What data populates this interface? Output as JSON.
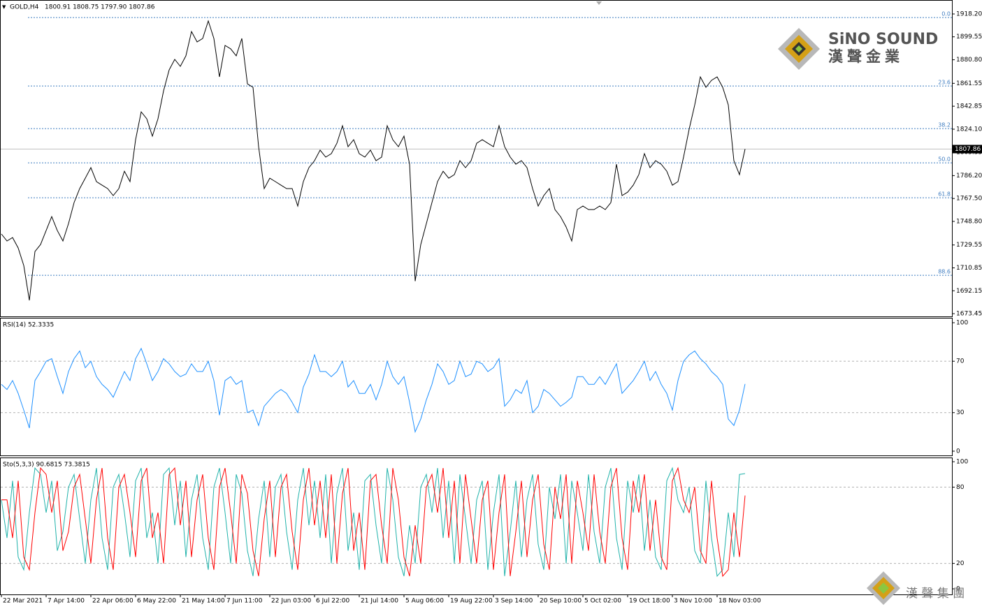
{
  "chart_data": [
    {
      "type": "line",
      "title": "GOLD,H4",
      "subtitle": "1800.91 1808.75 1797.90 1807.86",
      "ylim": [
        1671.2,
        1929.6
      ],
      "yticks": [
        {
          "value": 1918.2,
          "label": "1918.20"
        },
        1899.55,
        {
          "value": 1880.8,
          "label": "1880.80"
        },
        1861.55,
        1842.85,
        {
          "value": 1824.1,
          "label": "1824.10"
        },
        1805.35,
        {
          "value": 1786.2,
          "label": "1786.20"
        },
        {
          "value": 1767.5,
          "label": "1767.50"
        },
        {
          "value": 1748.8,
          "label": "1748.80"
        },
        1729.55,
        1710.85,
        1692.15,
        1673.45
      ],
      "last_price": 1807.86,
      "fib_levels": {
        "labels": [
          "0.0",
          "23.6",
          "38.2",
          "50.0",
          "61.8",
          "88.6"
        ],
        "prices": [
          1915.3,
          1859.4,
          1824.6,
          1796.6,
          1768.1,
          1704.8
        ]
      },
      "series": [
        {
          "color": "#000000",
          "values": [
            1738.5,
            1732.8,
            1735.6,
            1727.1,
            1712.8,
            1684.3,
            1724.2,
            1729.9,
            1741.3,
            1752.7,
            1741.3,
            1732.8,
            1747.0,
            1764.2,
            1775.6,
            1784.1,
            1792.7,
            1781.3,
            1778.4,
            1775.6,
            1769.9,
            1775.6,
            1789.8,
            1781.3,
            1815.5,
            1838.3,
            1832.6,
            1818.4,
            1832.6,
            1855.4,
            1872.5,
            1881.1,
            1875.4,
            1884.0,
            1903.9,
            1895.4,
            1898.2,
            1912.5,
            1898.2,
            1866.8,
            1892.5,
            1889.7,
            1884.0,
            1898.2,
            1861.1,
            1858.3,
            1809.8,
            1775.6,
            1784.1,
            1781.3,
            1778.4,
            1775.6,
            1775.6,
            1761.3,
            1781.3,
            1792.7,
            1798.4,
            1807.0,
            1801.3,
            1804.1,
            1812.6,
            1826.9,
            1809.8,
            1815.5,
            1804.1,
            1801.3,
            1807.0,
            1798.4,
            1801.3,
            1826.9,
            1815.5,
            1809.8,
            1818.4,
            1795.5,
            1700.0,
            1729.9,
            1747.0,
            1764.2,
            1781.3,
            1789.8,
            1784.1,
            1787.0,
            1798.4,
            1792.7,
            1798.4,
            1812.6,
            1815.5,
            1812.6,
            1809.8,
            1826.9,
            1809.8,
            1801.3,
            1795.5,
            1798.4,
            1792.7,
            1775.6,
            1761.3,
            1769.9,
            1775.6,
            1758.5,
            1752.7,
            1744.2,
            1732.8,
            1758.5,
            1761.3,
            1758.5,
            1758.5,
            1761.3,
            1758.5,
            1764.2,
            1795.5,
            1769.9,
            1772.7,
            1778.4,
            1787.0,
            1804.1,
            1792.7,
            1798.4,
            1795.5,
            1789.8,
            1778.4,
            1781.3,
            1801.3,
            1824.1,
            1844.0,
            1866.8,
            1858.3,
            1864.0,
            1866.8,
            1858.3,
            1844.0,
            1798.4,
            1787.0,
            1807.86
          ]
        }
      ]
    },
    {
      "type": "line",
      "title": "RSI(14) 52.3335",
      "ylim": [
        -3.3,
        103.8
      ],
      "yticks": [
        100,
        70,
        30,
        0
      ],
      "levels": [
        70,
        30
      ],
      "series": [
        {
          "color": "#1e90ff",
          "values": [
            52,
            48,
            55,
            45,
            32,
            18,
            55,
            62,
            70,
            72,
            58,
            45,
            62,
            72,
            78,
            65,
            70,
            58,
            52,
            48,
            42,
            52,
            62,
            55,
            72,
            80,
            68,
            55,
            62,
            72,
            68,
            62,
            58,
            60,
            68,
            62,
            62,
            70,
            55,
            28,
            55,
            58,
            52,
            55,
            30,
            32,
            20,
            35,
            40,
            45,
            48,
            45,
            38,
            30,
            50,
            60,
            75,
            62,
            62,
            58,
            62,
            70,
            50,
            55,
            45,
            45,
            52,
            40,
            52,
            70,
            58,
            52,
            58,
            38,
            15,
            25,
            40,
            52,
            68,
            62,
            52,
            55,
            70,
            58,
            60,
            70,
            68,
            62,
            65,
            72,
            35,
            40,
            48,
            45,
            55,
            30,
            35,
            48,
            45,
            40,
            35,
            38,
            42,
            58,
            58,
            52,
            52,
            58,
            52,
            60,
            68,
            45,
            50,
            55,
            62,
            70,
            55,
            62,
            52,
            45,
            32,
            55,
            70,
            75,
            78,
            72,
            68,
            62,
            58,
            52,
            25,
            20,
            32,
            52.3335
          ]
        }
      ]
    },
    {
      "type": "line",
      "title": "Sto(5,3,3) 90.6815 73.3815",
      "ylim": [
        -4.4,
        103.3
      ],
      "yticks": [
        100,
        80,
        20,
        0
      ],
      "levels": [
        80,
        20
      ],
      "xlim": [
        -0.25,
        170
      ],
      "xticks": [
        {
          "value": 0,
          "label": "22 Mar 2021"
        },
        {
          "value": 8,
          "label": "7 Apr 14:00"
        },
        {
          "value": 16,
          "label": "22 Apr 06:00"
        },
        {
          "value": 24,
          "label": "6 May 22:00"
        },
        {
          "value": 32,
          "label": "21 May 14:00"
        },
        {
          "value": 40,
          "label": "7 Jun 11:00"
        },
        {
          "value": 48,
          "label": "22 Jun 03:00"
        },
        {
          "value": 56,
          "label": "6 Jul 22:00"
        },
        {
          "value": 64,
          "label": "21 Jul 14:00"
        },
        {
          "value": 72,
          "label": "5 Aug 06:00"
        },
        {
          "value": 80,
          "label": "19 Aug 22:00"
        },
        {
          "value": 88,
          "label": "3 Sep 14:00"
        },
        {
          "value": 96,
          "label": "20 Sep 10:00"
        },
        {
          "value": 104,
          "label": "5 Oct 02:00"
        },
        {
          "value": 112,
          "label": "19 Oct 18:00"
        },
        {
          "value": 120,
          "label": "3 Nov 10:00"
        },
        {
          "value": 128,
          "label": "18 Nov 03:00"
        }
      ],
      "series": [
        {
          "color": "#20b2aa",
          "values": [
            70,
            40,
            85,
            25,
            15,
            60,
            95,
            90,
            60,
            85,
            30,
            45,
            80,
            90,
            55,
            20,
            70,
            95,
            40,
            15,
            80,
            90,
            60,
            25,
            85,
            95,
            40,
            60,
            20,
            90,
            95,
            50,
            85,
            25,
            70,
            90,
            40,
            15,
            80,
            95,
            60,
            20,
            90,
            75,
            30,
            10,
            55,
            85,
            25,
            80,
            90,
            45,
            15,
            70,
            95,
            50,
            85,
            40,
            90,
            20,
            75,
            95,
            30,
            60,
            15,
            85,
            90,
            50,
            20,
            95,
            70,
            25,
            10,
            50,
            20,
            80,
            90,
            60,
            95,
            40,
            85,
            20,
            90,
            55,
            20,
            70,
            85,
            15,
            60,
            90,
            10,
            45,
            85,
            25,
            70,
            90,
            35,
            15,
            80,
            55,
            90,
            20,
            85,
            60,
            30,
            90,
            45,
            20,
            80,
            95,
            40,
            15,
            85,
            60,
            90,
            30,
            70,
            25,
            15,
            85,
            95,
            70,
            60,
            80,
            30,
            20,
            85,
            40,
            10,
            15,
            60,
            25,
            90,
            90.6815
          ]
        },
        {
          "color": "#ff0000",
          "values": [
            70,
            70,
            40,
            85,
            25,
            15,
            60,
            95,
            90,
            60,
            85,
            30,
            45,
            80,
            90,
            55,
            20,
            70,
            95,
            40,
            15,
            80,
            90,
            60,
            25,
            85,
            95,
            40,
            60,
            20,
            90,
            95,
            50,
            85,
            25,
            70,
            90,
            40,
            15,
            80,
            95,
            60,
            20,
            90,
            75,
            30,
            10,
            55,
            85,
            25,
            80,
            90,
            45,
            15,
            70,
            95,
            50,
            85,
            40,
            90,
            20,
            75,
            95,
            30,
            60,
            15,
            85,
            90,
            50,
            20,
            95,
            70,
            25,
            10,
            50,
            20,
            80,
            90,
            60,
            95,
            40,
            85,
            20,
            90,
            55,
            20,
            70,
            85,
            15,
            60,
            90,
            10,
            45,
            85,
            25,
            70,
            90,
            35,
            15,
            80,
            55,
            90,
            20,
            85,
            60,
            30,
            90,
            45,
            20,
            80,
            95,
            40,
            15,
            85,
            60,
            90,
            30,
            70,
            25,
            15,
            85,
            95,
            70,
            60,
            80,
            30,
            20,
            85,
            40,
            10,
            15,
            60,
            25,
            73.3815
          ]
        }
      ]
    }
  ],
  "branding": {
    "name": "SiNO SOUND",
    "name_cn": "漢聲金業",
    "group_cn": "漢 聲 集 團"
  }
}
